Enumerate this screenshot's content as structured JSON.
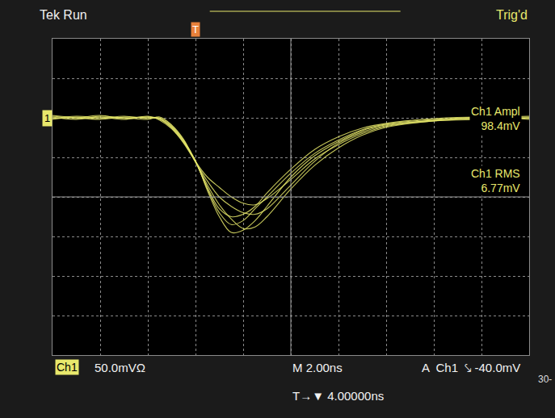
{
  "chart_data": {
    "type": "line",
    "header": {
      "left": "Tek Run",
      "right": "Trig'd"
    },
    "readouts": [
      {
        "label": "Ch1 Ampl",
        "value": "98.4mV"
      },
      {
        "label": "Ch1 RMS",
        "value": "6.77mV"
      }
    ],
    "footer": {
      "channel": "Ch1",
      "scale": "50.0mVΩ",
      "timebase": "M 2.00ns",
      "trigger": "A  Ch1  ⤥ -40.0mV",
      "delay": "T→▼ 4.00000ns",
      "corner": "30-"
    },
    "markers": {
      "channel": {
        "label": "1",
        "y": 100
      },
      "trigger": {
        "label": "T",
        "x": 0
      }
    },
    "x": [
      -6,
      -5,
      -4,
      -3,
      -2,
      -1.5,
      -1,
      -0.5,
      0,
      0.5,
      1,
      1.5,
      2,
      2.5,
      3,
      4,
      5,
      6,
      7,
      8,
      10,
      12,
      14
    ],
    "series": [
      {
        "color": "#e6e86a",
        "values": [
          102,
          100,
          103,
          99,
          101,
          98,
          88,
          70,
          45,
          10,
          -20,
          -35,
          -30,
          -15,
          0,
          30,
          55,
          72,
          85,
          92,
          98,
          100,
          101
        ]
      },
      {
        "color": "#e6e86a",
        "values": [
          98,
          101,
          99,
          102,
          99,
          100,
          90,
          72,
          45,
          15,
          -10,
          -28,
          -40,
          -38,
          -25,
          10,
          40,
          62,
          78,
          88,
          96,
          99,
          100
        ]
      },
      {
        "color": "#e6e86a",
        "values": [
          100,
          99,
          101,
          98,
          102,
          97,
          86,
          68,
          44,
          20,
          0,
          -12,
          -20,
          -22,
          -15,
          15,
          45,
          68,
          82,
          90,
          97,
          101,
          99
        ]
      },
      {
        "color": "#e6e86a",
        "values": [
          103,
          100,
          98,
          101,
          100,
          99,
          89,
          71,
          46,
          8,
          -25,
          -45,
          -42,
          -30,
          -12,
          25,
          52,
          70,
          84,
          91,
          97,
          100,
          102
        ]
      },
      {
        "color": "#e6e86a",
        "values": [
          99,
          102,
          100,
          100,
          98,
          101,
          91,
          73,
          45,
          25,
          12,
          0,
          -8,
          -10,
          -2,
          22,
          48,
          66,
          80,
          89,
          96,
          98,
          100
        ]
      },
      {
        "color": "#e6e86a",
        "values": [
          101,
          98,
          102,
          100,
          101,
          99,
          87,
          69,
          44,
          12,
          -15,
          -25,
          -22,
          -12,
          5,
          35,
          60,
          76,
          87,
          93,
          99,
          101,
          98
        ]
      }
    ],
    "xlim": [
      -6,
      14
    ],
    "xticks": [
      -6,
      -4,
      -2,
      0,
      2,
      4,
      6,
      8,
      10,
      12,
      14
    ],
    "ylim": [
      -200,
      200
    ],
    "yticks": [
      -200,
      -150,
      -100,
      -50,
      0,
      50,
      100,
      150,
      200
    ],
    "grid": true,
    "tick_labels": false,
    "line_style": "solid"
  }
}
